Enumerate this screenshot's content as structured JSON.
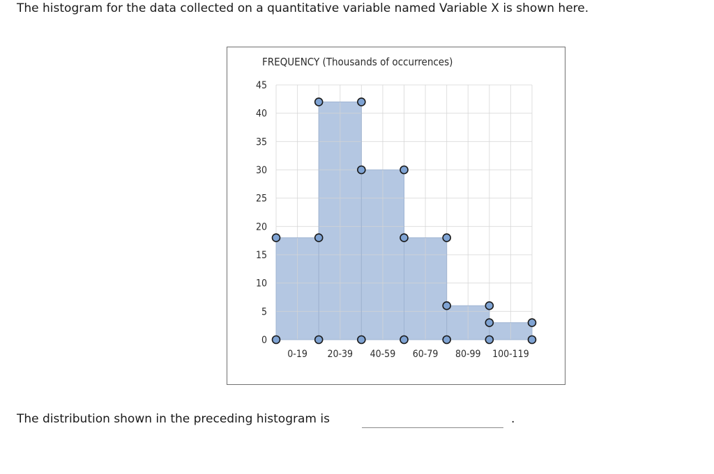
{
  "question": {
    "intro": "The histogram for the data collected on a quantitative variable named Variable X is shown here.",
    "prompt": "The distribution shown in the preceding histogram is",
    "answer_value": "",
    "end_mark": "."
  },
  "chart_data": {
    "type": "bar",
    "title": "FREQUENCY (Thousands of occurrences)",
    "xlabel": "",
    "ylabel": "",
    "categories": [
      "0-19",
      "20-39",
      "40-59",
      "60-79",
      "80-99",
      "100-119"
    ],
    "values": [
      18,
      42,
      30,
      18,
      6,
      3
    ],
    "ylim": [
      0,
      45
    ],
    "yticks": [
      0,
      5,
      10,
      15,
      20,
      25,
      30,
      35,
      40,
      45
    ],
    "grid": true,
    "bar_color": "#b4c7e2",
    "bar_stroke": "#9fb4d3",
    "grid_color": "#d4d4d4",
    "handle_fill": "#7fa3d3",
    "handle_stroke": "#1a1a1a"
  }
}
